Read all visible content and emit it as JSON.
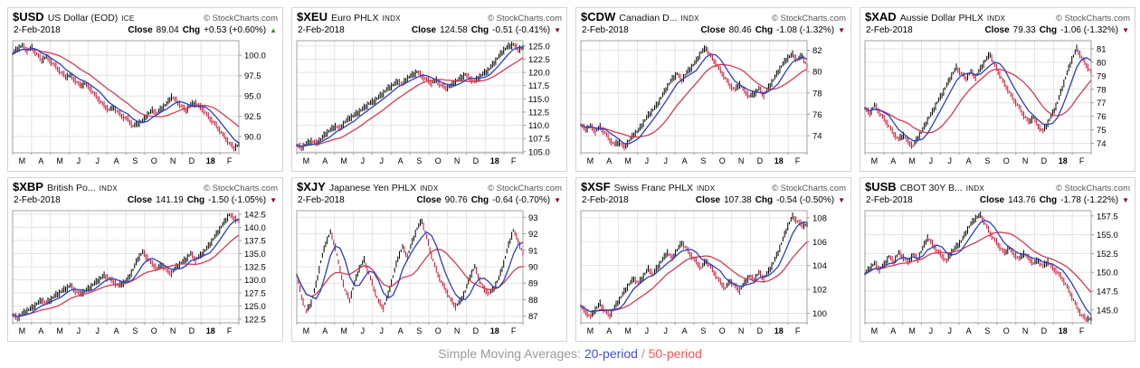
{
  "caption": {
    "prefix": "Simple Moving Averages: ",
    "sma20": "20-period",
    "slash": " / ",
    "sma50": "50-period"
  },
  "labels": {
    "close": "Close",
    "chg": "Chg"
  },
  "months": [
    "M",
    "A",
    "M",
    "J",
    "J",
    "A",
    "S",
    "O",
    "N",
    "D",
    "18",
    "F"
  ],
  "bold_month_index": 10,
  "colors": {
    "sma20": "#2d3fc0",
    "sma50": "#d63a4f",
    "candle_up": "#000000",
    "candle_down": "#c81030",
    "up_triangle": "#2e8b2e",
    "down_triangle": "#8b0020",
    "grid": "#e3e3e3",
    "plot_border": "#a0a0a0",
    "caption_blue": "#4050e0",
    "caption_red": "#ff5252"
  },
  "chart_data": [
    {
      "type": "candlestick",
      "symbol": "$USD",
      "name": "US Dollar (EOD)",
      "suffix": "ICE",
      "brand": "© StockCharts.com",
      "date": "2-Feb-2018",
      "close": "89.04",
      "chg": "+0.53 (+0.60%)",
      "direction": "up",
      "y_ticks": [
        "100.0",
        "97.5",
        "95.0",
        "92.5",
        "90.0"
      ],
      "y_min": 88.0,
      "y_max": 101.8,
      "price": [
        100.2,
        100.8,
        101.2,
        100.6,
        100.9,
        100.2,
        99.4,
        99.8,
        99.2,
        98.6,
        97.9,
        97.4,
        97.5,
        96.9,
        96.3,
        96.5,
        96.0,
        95.2,
        94.5,
        93.8,
        93.3,
        93.6,
        92.9,
        92.4,
        92.1,
        91.3,
        91.6,
        91.9,
        92.7,
        93.2,
        92.9,
        93.5,
        94.0,
        94.9,
        94.4,
        93.8,
        93.2,
        93.9,
        94.1,
        93.6,
        93.0,
        92.2,
        91.6,
        90.8,
        90.0,
        89.2,
        88.6,
        89.0
      ]
    },
    {
      "type": "candlestick",
      "symbol": "$XEU",
      "name": "Euro PHLX",
      "suffix": "INDX",
      "brand": "© StockCharts.com",
      "date": "2-Feb-2018",
      "close": "124.58",
      "chg": "-0.51 (-0.41%)",
      "direction": "down",
      "y_ticks": [
        "125.0",
        "122.5",
        "120.0",
        "117.5",
        "115.0",
        "112.5",
        "110.0",
        "107.5",
        "105.0"
      ],
      "y_min": 104.8,
      "y_max": 126.0,
      "price": [
        106.2,
        105.8,
        106.5,
        107.0,
        106.6,
        107.3,
        108.4,
        109.1,
        109.8,
        109.4,
        110.6,
        111.4,
        111.9,
        112.6,
        113.3,
        114.1,
        114.5,
        115.3,
        116.1,
        117.0,
        117.6,
        118.3,
        117.8,
        118.9,
        119.5,
        120.1,
        119.3,
        118.6,
        118.0,
        118.5,
        117.6,
        117.1,
        117.4,
        118.2,
        118.9,
        119.6,
        118.8,
        118.3,
        119.2,
        119.9,
        120.6,
        121.8,
        123.0,
        124.2,
        124.9,
        125.3,
        124.4,
        124.6
      ]
    },
    {
      "type": "candlestick",
      "symbol": "$CDW",
      "name": "Canadian D...",
      "suffix": "INDX",
      "brand": "© StockCharts.com",
      "date": "2-Feb-2018",
      "close": "80.46",
      "chg": "-1.08 (-1.32%)",
      "direction": "down",
      "y_ticks": [
        "82",
        "80",
        "78",
        "76",
        "74"
      ],
      "y_min": 72.4,
      "y_max": 82.9,
      "price": [
        75.0,
        74.6,
        74.9,
        74.4,
        74.8,
        74.3,
        73.6,
        73.2,
        73.4,
        72.9,
        73.5,
        74.1,
        74.5,
        75.2,
        75.9,
        76.4,
        77.0,
        77.8,
        78.6,
        79.3,
        79.8,
        79.2,
        79.9,
        80.4,
        81.0,
        81.8,
        82.2,
        81.5,
        80.8,
        80.1,
        79.4,
        78.7,
        78.3,
        78.8,
        78.2,
        77.7,
        77.9,
        78.4,
        77.8,
        78.5,
        79.2,
        80.0,
        80.7,
        81.3,
        81.6,
        81.1,
        81.5,
        80.5
      ]
    },
    {
      "type": "candlestick",
      "symbol": "$XAD",
      "name": "Aussie Dollar PHLX",
      "suffix": "INDX",
      "brand": "© StockCharts.com",
      "date": "2-Feb-2018",
      "close": "79.33",
      "chg": "-1.06 (-1.32%)",
      "direction": "down",
      "y_ticks": [
        "81",
        "80",
        "79",
        "78",
        "77",
        "76",
        "75",
        "74"
      ],
      "y_min": 73.3,
      "y_max": 81.6,
      "price": [
        76.6,
        76.2,
        76.8,
        76.3,
        75.8,
        75.3,
        74.7,
        74.3,
        74.6,
        74.1,
        73.8,
        74.4,
        75.0,
        75.7,
        76.3,
        77.0,
        77.6,
        78.3,
        79.0,
        79.6,
        79.2,
        78.8,
        79.3,
        78.9,
        79.5,
        80.1,
        80.6,
        79.8,
        79.1,
        78.4,
        77.8,
        77.2,
        76.7,
        76.1,
        75.6,
        75.9,
        75.3,
        74.9,
        75.5,
        76.2,
        77.0,
        78.1,
        79.2,
        80.2,
        81.0,
        80.4,
        79.8,
        79.3
      ]
    },
    {
      "type": "candlestick",
      "symbol": "$XBP",
      "name": "British Po...",
      "suffix": "INDX",
      "brand": "© StockCharts.com",
      "date": "2-Feb-2018",
      "close": "141.19",
      "chg": "-1.50 (-1.05%)",
      "direction": "down",
      "y_ticks": [
        "142.5",
        "140.0",
        "137.5",
        "135.0",
        "132.5",
        "130.0",
        "127.5",
        "125.0",
        "122.5"
      ],
      "y_min": 121.8,
      "y_max": 143.2,
      "price": [
        123.3,
        122.7,
        123.5,
        124.1,
        124.6,
        125.4,
        126.1,
        125.6,
        126.3,
        127.1,
        127.7,
        128.3,
        128.9,
        127.9,
        127.3,
        127.8,
        128.5,
        129.3,
        130.1,
        130.8,
        130.3,
        129.6,
        128.9,
        129.4,
        130.2,
        131.9,
        134.0,
        135.3,
        134.2,
        133.0,
        132.2,
        132.9,
        131.8,
        131.2,
        132.4,
        133.2,
        133.9,
        135.0,
        133.8,
        134.6,
        135.6,
        136.8,
        138.2,
        139.6,
        141.0,
        142.4,
        141.8,
        141.2
      ]
    },
    {
      "type": "candlestick",
      "symbol": "$XJY",
      "name": "Japanese Yen PHLX",
      "suffix": "INDX",
      "brand": "© StockCharts.com",
      "date": "2-Feb-2018",
      "close": "90.76",
      "chg": "-0.64 (-0.70%)",
      "direction": "down",
      "y_ticks": [
        "93",
        "92",
        "91",
        "90",
        "89",
        "88",
        "87"
      ],
      "y_min": 86.6,
      "y_max": 93.4,
      "price": [
        89.5,
        88.2,
        87.3,
        87.8,
        88.9,
        90.3,
        91.4,
        92.1,
        91.2,
        89.8,
        88.6,
        88.0,
        89.0,
        89.9,
        90.4,
        89.6,
        88.7,
        87.9,
        87.5,
        88.3,
        89.4,
        90.5,
        91.2,
        90.6,
        91.5,
        92.3,
        92.8,
        91.8,
        90.7,
        89.8,
        89.1,
        88.6,
        88.0,
        87.6,
        87.9,
        88.5,
        89.4,
        90.0,
        89.2,
        88.6,
        88.4,
        88.7,
        89.3,
        90.2,
        91.3,
        92.2,
        91.6,
        90.8
      ]
    },
    {
      "type": "candlestick",
      "symbol": "$XSF",
      "name": "Swiss Franc PHLX",
      "suffix": "INDX",
      "brand": "© StockCharts.com",
      "date": "2-Feb-2018",
      "close": "107.38",
      "chg": "-0.54 (-0.50%)",
      "direction": "down",
      "y_ticks": [
        "108",
        "106",
        "104",
        "102",
        "100"
      ],
      "y_min": 99.2,
      "y_max": 108.6,
      "price": [
        100.6,
        100.1,
        99.7,
        100.3,
        100.8,
        100.2,
        99.8,
        100.5,
        101.1,
        101.8,
        102.4,
        102.9,
        102.5,
        103.1,
        103.7,
        103.3,
        103.9,
        104.5,
        105.1,
        104.6,
        105.3,
        105.9,
        105.4,
        104.8,
        104.3,
        103.8,
        104.4,
        103.9,
        103.2,
        102.6,
        102.1,
        102.7,
        102.3,
        101.9,
        102.5,
        103.1,
        102.8,
        103.4,
        102.9,
        103.5,
        104.2,
        105.1,
        106.2,
        107.3,
        108.1,
        107.7,
        107.4,
        107.4
      ]
    },
    {
      "type": "candlestick",
      "symbol": "$USB",
      "name": "CBOT 30Y B...",
      "suffix": "INDX",
      "brand": "© StockCharts.com",
      "date": "2-Feb-2018",
      "close": "143.76",
      "chg": "-1.78 (-1.22%)",
      "direction": "down",
      "y_ticks": [
        "157.5",
        "155.0",
        "152.5",
        "150.0",
        "147.5",
        "145.0"
      ],
      "y_min": 143.3,
      "y_max": 158.2,
      "price": [
        149.8,
        150.5,
        151.2,
        150.4,
        151.0,
        152.1,
        151.4,
        152.6,
        152.0,
        151.3,
        152.4,
        151.7,
        153.2,
        154.6,
        153.8,
        152.9,
        152.2,
        151.5,
        152.7,
        153.4,
        154.1,
        155.3,
        156.4,
        157.2,
        157.6,
        156.5,
        155.2,
        154.3,
        153.4,
        152.6,
        153.2,
        152.4,
        151.8,
        152.5,
        151.9,
        151.2,
        151.6,
        150.8,
        151.4,
        150.6,
        150.0,
        149.2,
        148.1,
        146.8,
        145.5,
        144.3,
        143.8,
        143.8
      ]
    }
  ]
}
